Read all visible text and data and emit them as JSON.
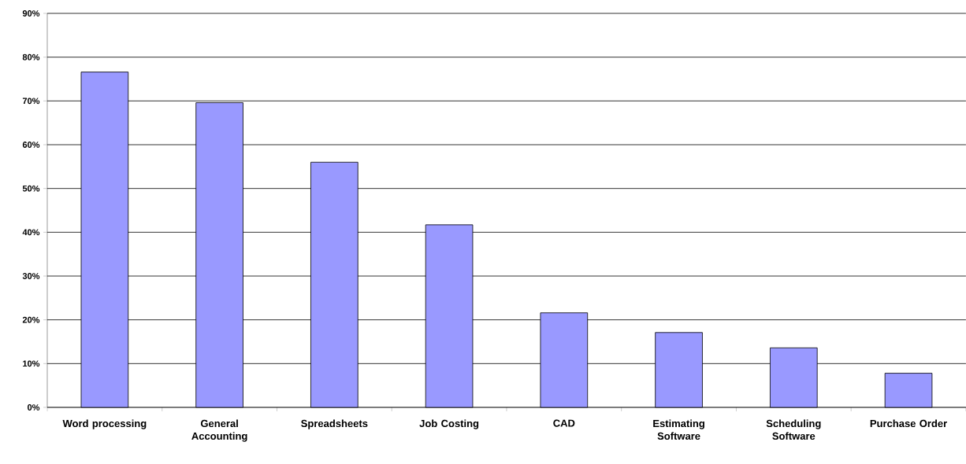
{
  "chart_data": {
    "type": "bar",
    "categories": [
      "Word processing",
      "General Accounting",
      "Spreadsheets",
      "Job Costing",
      "CAD",
      "Estimating Software",
      "Scheduling Software",
      "Purchase Order"
    ],
    "values": [
      76.6,
      69.6,
      56.0,
      41.7,
      21.6,
      17.1,
      13.6,
      7.8
    ],
    "color": "#9999ff",
    "ylim": [
      0,
      90
    ],
    "yticks": [
      {
        "value": 0,
        "label": "0%"
      },
      {
        "value": 10,
        "label": "10%"
      },
      {
        "value": 20,
        "label": "20%"
      },
      {
        "value": 30,
        "label": "30%"
      },
      {
        "value": 40,
        "label": "40%"
      },
      {
        "value": 50,
        "label": "50%"
      },
      {
        "value": 60,
        "label": "60%"
      },
      {
        "value": 70,
        "label": "70%"
      },
      {
        "value": 80,
        "label": "80%"
      },
      {
        "value": 90,
        "label": "90%"
      }
    ],
    "grid": "y"
  }
}
